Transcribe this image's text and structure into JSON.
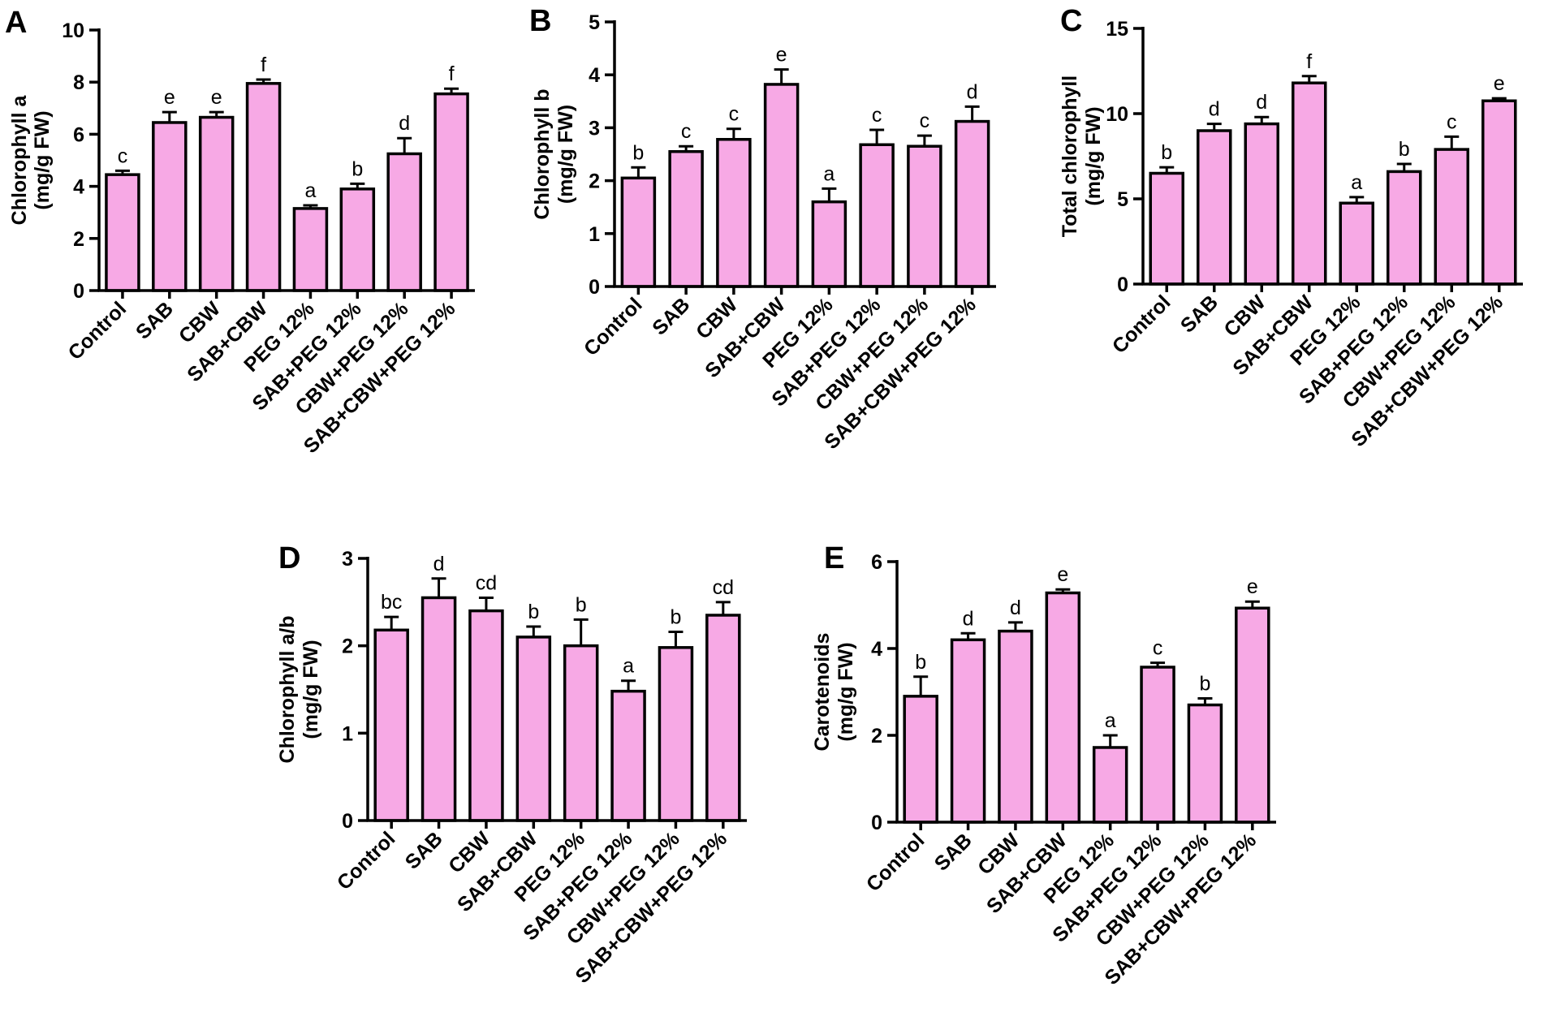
{
  "colors": {
    "bar_fill": "#F7A9E5",
    "stroke": "#000000"
  },
  "chart_data": [
    {
      "type": "bar",
      "panel": "A",
      "ylabel_lines": [
        "Chlorophyll a",
        "(mg/g FW)"
      ],
      "categories": [
        "Control",
        "SAB",
        "CBW",
        "SAB+CBW",
        "PEG 12%",
        "SAB+PEG 12%",
        "CBW+PEG 12%",
        "SAB+CBW+PEG 12%"
      ],
      "values": [
        4.45,
        6.45,
        6.65,
        7.95,
        3.15,
        3.9,
        5.25,
        7.55
      ],
      "errors": [
        0.15,
        0.4,
        0.2,
        0.15,
        0.12,
        0.2,
        0.6,
        0.2
      ],
      "letters": [
        "c",
        "e",
        "e",
        "f",
        "a",
        "b",
        "d",
        "f"
      ],
      "ylim": [
        0,
        10
      ],
      "yticks": [
        0,
        2,
        4,
        6,
        8,
        10
      ],
      "ytick_labels": [
        "0",
        "2",
        "4",
        "6",
        "8",
        "10"
      ]
    },
    {
      "type": "bar",
      "panel": "B",
      "ylabel_lines": [
        "Chlorophyll b",
        "(mg/g FW)"
      ],
      "categories": [
        "Control",
        "SAB",
        "CBW",
        "SAB+CBW",
        "PEG 12%",
        "SAB+PEG 12%",
        "CBW+PEG 12%",
        "SAB+CBW+PEG 12%"
      ],
      "values": [
        2.05,
        2.55,
        2.78,
        3.82,
        1.6,
        2.68,
        2.65,
        3.12
      ],
      "errors": [
        0.2,
        0.1,
        0.2,
        0.28,
        0.25,
        0.28,
        0.2,
        0.28
      ],
      "letters": [
        "b",
        "c",
        "c",
        "e",
        "a",
        "c",
        "c",
        "d"
      ],
      "ylim": [
        0,
        5
      ],
      "yticks": [
        0,
        1,
        2,
        3,
        4,
        5
      ],
      "ytick_labels": [
        "0",
        "1",
        "2",
        "3",
        "4",
        "5"
      ]
    },
    {
      "type": "bar",
      "panel": "C",
      "ylabel_lines": [
        "Total chlorophyll",
        "(mg/g FW)"
      ],
      "categories": [
        "Control",
        "SAB",
        "CBW",
        "SAB+CBW",
        "PEG 12%",
        "SAB+PEG 12%",
        "CBW+PEG 12%",
        "SAB+CBW+PEG 12%"
      ],
      "values": [
        6.5,
        9.0,
        9.4,
        11.8,
        4.75,
        6.6,
        7.9,
        10.75
      ],
      "errors": [
        0.35,
        0.4,
        0.4,
        0.4,
        0.35,
        0.45,
        0.75,
        0.15
      ],
      "letters": [
        "b",
        "d",
        "d",
        "f",
        "a",
        "b",
        "c",
        "e"
      ],
      "ylim": [
        0,
        15
      ],
      "yticks": [
        0,
        5,
        10,
        15
      ],
      "ytick_labels": [
        "0",
        "5",
        "10",
        "15"
      ]
    },
    {
      "type": "bar",
      "panel": "D",
      "ylabel_lines": [
        "Chlorophyll a/b",
        "(mg/g FW)"
      ],
      "categories": [
        "Control",
        "SAB",
        "CBW",
        "SAB+CBW",
        "PEG 12%",
        "SAB+PEG 12%",
        "CBW+PEG 12%",
        "SAB+CBW+PEG 12%"
      ],
      "values": [
        2.18,
        2.55,
        2.4,
        2.1,
        2.0,
        1.48,
        1.98,
        2.35
      ],
      "errors": [
        0.15,
        0.22,
        0.15,
        0.12,
        0.3,
        0.12,
        0.18,
        0.15
      ],
      "letters": [
        "bc",
        "d",
        "cd",
        "b",
        "b",
        "a",
        "b",
        "cd"
      ],
      "ylim": [
        0,
        3
      ],
      "yticks": [
        0,
        1,
        2,
        3
      ],
      "ytick_labels": [
        "0",
        "1",
        "2",
        "3"
      ]
    },
    {
      "type": "bar",
      "panel": "E",
      "ylabel_lines": [
        "Carotenoids",
        "(mg/g FW)"
      ],
      "categories": [
        "Control",
        "SAB",
        "CBW",
        "SAB+CBW",
        "PEG 12%",
        "SAB+PEG 12%",
        "CBW+PEG 12%",
        "SAB+CBW+PEG 12%"
      ],
      "values": [
        2.9,
        4.2,
        4.4,
        5.28,
        1.72,
        3.57,
        2.7,
        4.93
      ],
      "errors": [
        0.45,
        0.15,
        0.2,
        0.08,
        0.28,
        0.1,
        0.15,
        0.15
      ],
      "letters": [
        "b",
        "d",
        "d",
        "e",
        "a",
        "c",
        "b",
        "e"
      ],
      "ylim": [
        0,
        6
      ],
      "yticks": [
        0,
        2,
        4,
        6
      ],
      "ytick_labels": [
        "0",
        "2",
        "4",
        "6"
      ]
    }
  ]
}
